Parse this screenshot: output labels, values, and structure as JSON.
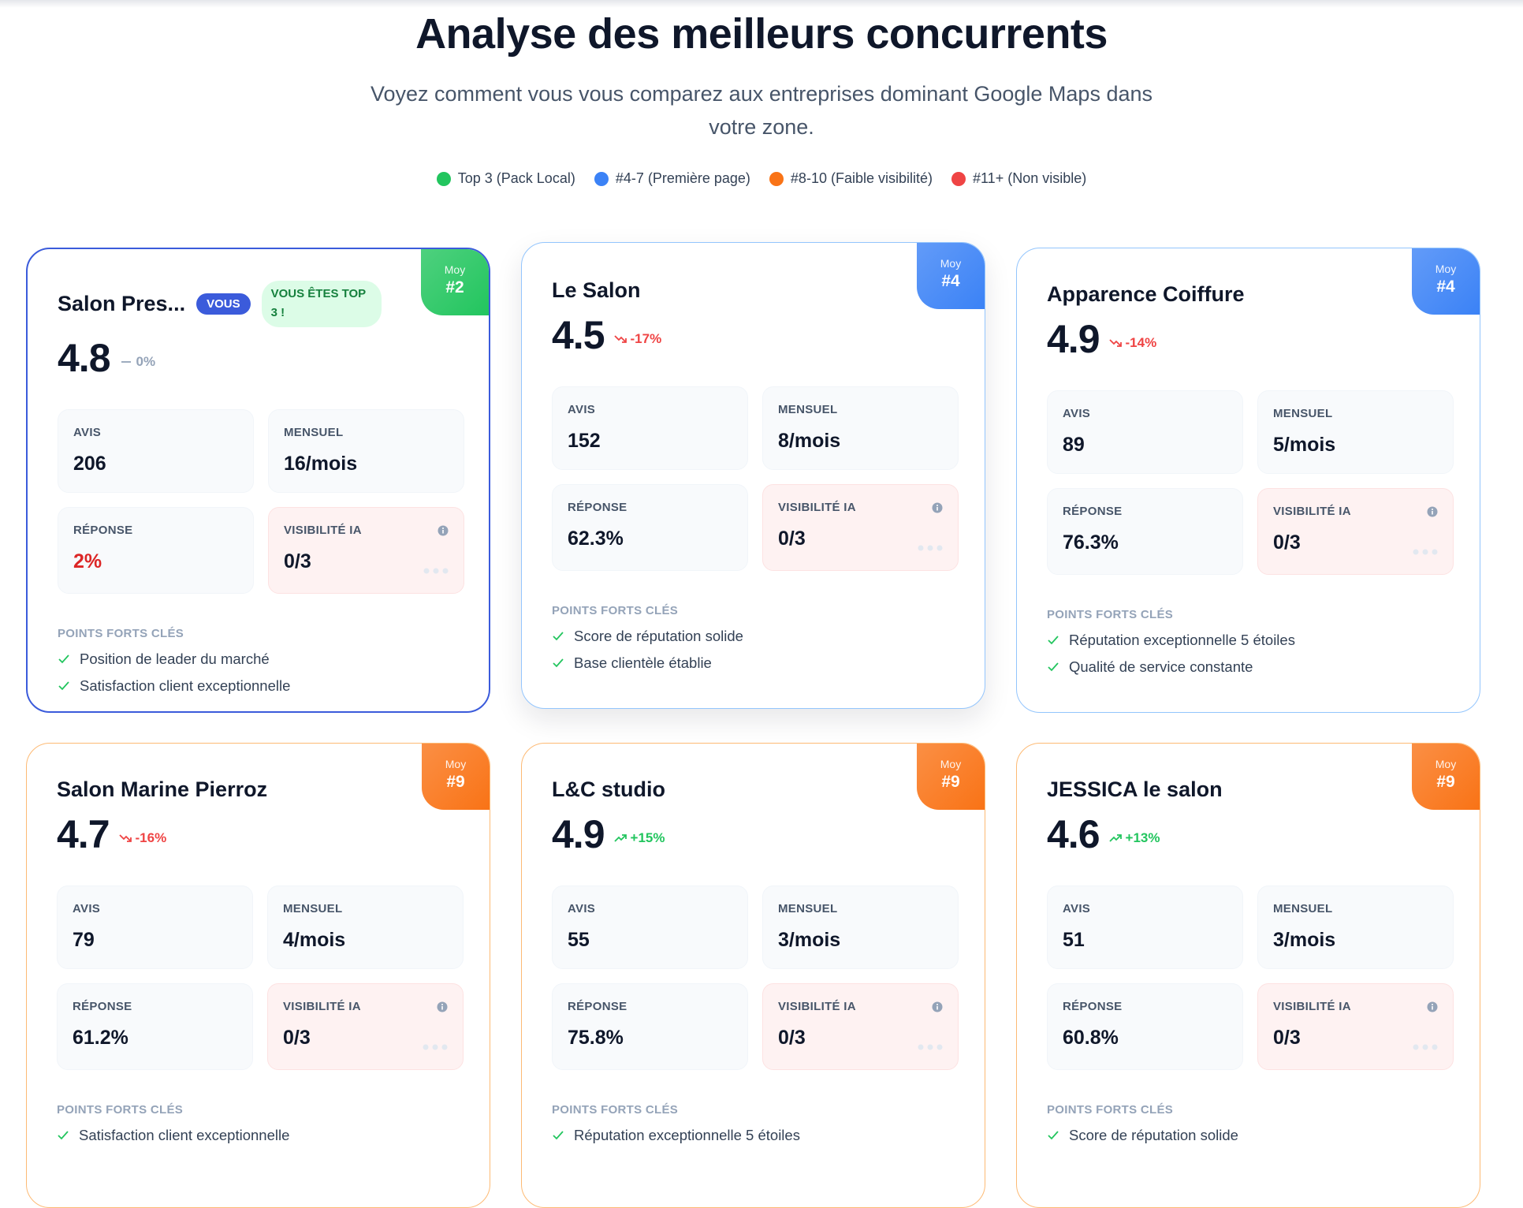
{
  "header": {
    "title": "Analyse des meilleurs concurrents",
    "subtitle": "Voyez comment vous vous comparez aux entreprises dominant Google Maps dans votre zone."
  },
  "legend": [
    {
      "label": "Top 3 (Pack Local)",
      "color": "#22c55e"
    },
    {
      "label": "#4-7 (Première page)",
      "color": "#3b82f6"
    },
    {
      "label": "#8-10 (Faible visibilité)",
      "color": "#f97316"
    },
    {
      "label": "#11+ (Non visible)",
      "color": "#ef4444"
    }
  ],
  "cards": [
    {
      "name": "Salon Pres...",
      "you_badge": "VOUS",
      "top_badge": "VOUS ÊTES TOP 3 !",
      "border_color": "#3b5bdb",
      "badge_color": "#22c55e",
      "rank_label": "Moy",
      "rank": "#2",
      "rating": 4.8,
      "trend": "flat",
      "change": "0%",
      "stats": {
        "avis_label": "AVIS",
        "avis": 206,
        "mensuel_label": "MENSUEL",
        "mensuel": "16/mois",
        "reponse_label": "RÉPONSE",
        "reponse": "2%",
        "reponse_alert": true,
        "visibilite_label": "VISIBILITÉ IA",
        "visibilite": "0/3"
      },
      "points_label": "POINTS FORTS CLÉS",
      "points": [
        "Position de leader du marché",
        "Satisfaction client exceptionnelle"
      ]
    },
    {
      "name": "Le Salon",
      "border_color": "#93c5fd",
      "badge_color": "#3b82f6",
      "rank_label": "Moy",
      "rank": "#4",
      "rating": 4.5,
      "trend": "down",
      "change": "-17%",
      "stats": {
        "avis_label": "AVIS",
        "avis": 152,
        "mensuel_label": "MENSUEL",
        "mensuel": "8/mois",
        "reponse_label": "RÉPONSE",
        "reponse": "62.3%",
        "reponse_alert": false,
        "visibilite_label": "VISIBILITÉ IA",
        "visibilite": "0/3"
      },
      "points_label": "POINTS FORTS CLÉS",
      "points": [
        "Score de réputation solide",
        "Base clientèle établie"
      ]
    },
    {
      "name": "Apparence Coiffure",
      "border_color": "#93c5fd",
      "badge_color": "#3b82f6",
      "rank_label": "Moy",
      "rank": "#4",
      "rating": 4.9,
      "trend": "down",
      "change": "-14%",
      "stats": {
        "avis_label": "AVIS",
        "avis": 89,
        "mensuel_label": "MENSUEL",
        "mensuel": "5/mois",
        "reponse_label": "RÉPONSE",
        "reponse": "76.3%",
        "reponse_alert": false,
        "visibilite_label": "VISIBILITÉ IA",
        "visibilite": "0/3"
      },
      "points_label": "POINTS FORTS CLÉS",
      "points": [
        "Réputation exceptionnelle 5 étoiles",
        "Qualité de service constante"
      ]
    },
    {
      "name": "Salon Marine Pierroz",
      "border_color": "#fdba74",
      "badge_color": "#f97316",
      "rank_label": "Moy",
      "rank": "#9",
      "rating": 4.7,
      "trend": "down",
      "change": "-16%",
      "stats": {
        "avis_label": "AVIS",
        "avis": 79,
        "mensuel_label": "MENSUEL",
        "mensuel": "4/mois",
        "reponse_label": "RÉPONSE",
        "reponse": "61.2%",
        "reponse_alert": false,
        "visibilite_label": "VISIBILITÉ IA",
        "visibilite": "0/3"
      },
      "points_label": "POINTS FORTS CLÉS",
      "points": [
        "Satisfaction client exceptionnelle"
      ]
    },
    {
      "name": "L&C studio",
      "border_color": "#fdba74",
      "badge_color": "#f97316",
      "rank_label": "Moy",
      "rank": "#9",
      "rating": 4.9,
      "trend": "up",
      "change": "+15%",
      "stats": {
        "avis_label": "AVIS",
        "avis": 55,
        "mensuel_label": "MENSUEL",
        "mensuel": "3/mois",
        "reponse_label": "RÉPONSE",
        "reponse": "75.8%",
        "reponse_alert": false,
        "visibilite_label": "VISIBILITÉ IA",
        "visibilite": "0/3"
      },
      "points_label": "POINTS FORTS CLÉS",
      "points": [
        "Réputation exceptionnelle 5 étoiles"
      ]
    },
    {
      "name": "JESSICA le salon",
      "border_color": "#fdba74",
      "badge_color": "#f97316",
      "rank_label": "Moy",
      "rank": "#9",
      "rating": 4.6,
      "trend": "up",
      "change": "+13%",
      "stats": {
        "avis_label": "AVIS",
        "avis": 51,
        "mensuel_label": "MENSUEL",
        "mensuel": "3/mois",
        "reponse_label": "RÉPONSE",
        "reponse": "60.8%",
        "reponse_alert": false,
        "visibilite_label": "VISIBILITÉ IA",
        "visibilite": "0/3"
      },
      "points_label": "POINTS FORTS CLÉS",
      "points": [
        "Score de réputation solide"
      ]
    }
  ]
}
